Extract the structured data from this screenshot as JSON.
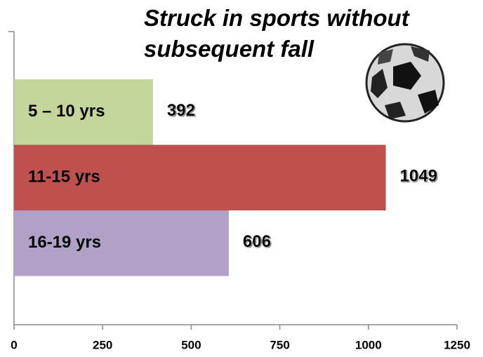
{
  "chart_data": {
    "type": "bar",
    "orientation": "horizontal",
    "title": "Struck in sports without subsequent fall",
    "categories": [
      "5 – 10 yrs",
      "11-15 yrs",
      "16-19 yrs"
    ],
    "values": [
      392,
      1049,
      606
    ],
    "colors": [
      "#c3d69b",
      "#c0504d",
      "#b2a1c7"
    ],
    "xlim": [
      0,
      1250
    ],
    "xticks": [
      0,
      250,
      500,
      750,
      1000,
      1250
    ],
    "grid": false
  }
}
